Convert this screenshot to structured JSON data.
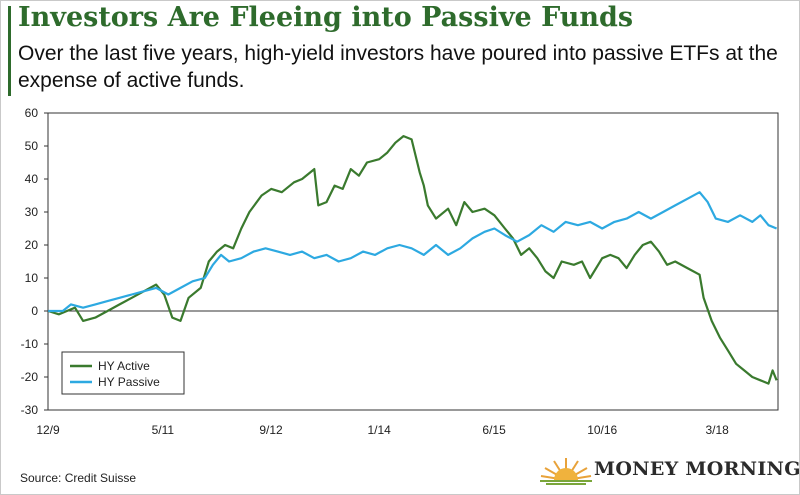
{
  "title": "Investors Are Fleeing into Passive Funds",
  "subtitle": "Over the last five years, high-yield investors have poured into passive ETFs at the expense of active funds.",
  "source": "Source: Credit Suisse",
  "brand": "MONEY MORNING",
  "colors": {
    "active": "#3a7a2e",
    "passive": "#2da9e1",
    "title": "#2e6b2c",
    "axis": "#333333"
  },
  "chart_data": {
    "type": "line",
    "title": "",
    "xlabel": "",
    "ylabel": "",
    "ylim": [
      -30,
      60
    ],
    "yticks": [
      60,
      50,
      40,
      30,
      20,
      10,
      0,
      -10,
      -20,
      -30
    ],
    "xlim": [
      2009.917,
      2018.917
    ],
    "xticks": [
      {
        "label": "12/9",
        "x": 2009.917
      },
      {
        "label": "5/11",
        "x": 2011.333
      },
      {
        "label": "9/12",
        "x": 2012.667
      },
      {
        "label": "1/14",
        "x": 2014.0
      },
      {
        "label": "6/15",
        "x": 2015.417
      },
      {
        "label": "10/16",
        "x": 2016.75
      },
      {
        "label": "3/18",
        "x": 2018.167
      }
    ],
    "grid": false,
    "legend_position": "bottom-left",
    "series": [
      {
        "name": "HY Active",
        "color": "#3a7a2e",
        "points": [
          [
            2009.92,
            0
          ],
          [
            2010.05,
            -1
          ],
          [
            2010.15,
            0
          ],
          [
            2010.25,
            1
          ],
          [
            2010.35,
            -3
          ],
          [
            2010.5,
            -2
          ],
          [
            2010.65,
            0
          ],
          [
            2010.8,
            2
          ],
          [
            2010.95,
            4
          ],
          [
            2011.1,
            6
          ],
          [
            2011.25,
            8
          ],
          [
            2011.35,
            5
          ],
          [
            2011.45,
            -2
          ],
          [
            2011.55,
            -3
          ],
          [
            2011.65,
            4
          ],
          [
            2011.8,
            7
          ],
          [
            2011.9,
            15
          ],
          [
            2012.0,
            18
          ],
          [
            2012.1,
            20
          ],
          [
            2012.2,
            19
          ],
          [
            2012.3,
            25
          ],
          [
            2012.4,
            30
          ],
          [
            2012.55,
            35
          ],
          [
            2012.67,
            37
          ],
          [
            2012.8,
            36
          ],
          [
            2012.95,
            39
          ],
          [
            2013.05,
            40
          ],
          [
            2013.2,
            43
          ],
          [
            2013.25,
            32
          ],
          [
            2013.35,
            33
          ],
          [
            2013.45,
            38
          ],
          [
            2013.55,
            37
          ],
          [
            2013.65,
            43
          ],
          [
            2013.75,
            41
          ],
          [
            2013.85,
            45
          ],
          [
            2014.0,
            46
          ],
          [
            2014.1,
            48
          ],
          [
            2014.2,
            51
          ],
          [
            2014.3,
            53
          ],
          [
            2014.4,
            52
          ],
          [
            2014.5,
            42
          ],
          [
            2014.55,
            38
          ],
          [
            2014.6,
            32
          ],
          [
            2014.7,
            28
          ],
          [
            2014.85,
            31
          ],
          [
            2014.95,
            26
          ],
          [
            2015.05,
            33
          ],
          [
            2015.15,
            30
          ],
          [
            2015.3,
            31
          ],
          [
            2015.42,
            29
          ],
          [
            2015.55,
            25
          ],
          [
            2015.65,
            22
          ],
          [
            2015.75,
            17
          ],
          [
            2015.85,
            19
          ],
          [
            2015.95,
            16
          ],
          [
            2016.05,
            12
          ],
          [
            2016.15,
            10
          ],
          [
            2016.25,
            15
          ],
          [
            2016.4,
            14
          ],
          [
            2016.5,
            15
          ],
          [
            2016.6,
            10
          ],
          [
            2016.75,
            16
          ],
          [
            2016.85,
            17
          ],
          [
            2016.95,
            16
          ],
          [
            2017.05,
            13
          ],
          [
            2017.15,
            17
          ],
          [
            2017.25,
            20
          ],
          [
            2017.35,
            21
          ],
          [
            2017.45,
            18
          ],
          [
            2017.55,
            14
          ],
          [
            2017.65,
            15
          ],
          [
            2017.8,
            13
          ],
          [
            2017.95,
            11
          ],
          [
            2018.0,
            4
          ],
          [
            2018.1,
            -3
          ],
          [
            2018.2,
            -8
          ],
          [
            2018.3,
            -12
          ],
          [
            2018.4,
            -16
          ],
          [
            2018.5,
            -18
          ],
          [
            2018.6,
            -20
          ],
          [
            2018.7,
            -21
          ],
          [
            2018.8,
            -22
          ],
          [
            2018.85,
            -18
          ],
          [
            2018.9,
            -21
          ]
        ]
      },
      {
        "name": "HY Passive",
        "color": "#2da9e1",
        "points": [
          [
            2009.92,
            0
          ],
          [
            2010.1,
            0
          ],
          [
            2010.2,
            2
          ],
          [
            2010.35,
            1
          ],
          [
            2010.5,
            2
          ],
          [
            2010.65,
            3
          ],
          [
            2010.8,
            4
          ],
          [
            2010.95,
            5
          ],
          [
            2011.1,
            6
          ],
          [
            2011.25,
            7
          ],
          [
            2011.4,
            5
          ],
          [
            2011.55,
            7
          ],
          [
            2011.7,
            9
          ],
          [
            2011.85,
            10
          ],
          [
            2011.95,
            14
          ],
          [
            2012.05,
            17
          ],
          [
            2012.15,
            15
          ],
          [
            2012.3,
            16
          ],
          [
            2012.45,
            18
          ],
          [
            2012.6,
            19
          ],
          [
            2012.75,
            18
          ],
          [
            2012.9,
            17
          ],
          [
            2013.05,
            18
          ],
          [
            2013.2,
            16
          ],
          [
            2013.35,
            17
          ],
          [
            2013.5,
            15
          ],
          [
            2013.65,
            16
          ],
          [
            2013.8,
            18
          ],
          [
            2013.95,
            17
          ],
          [
            2014.1,
            19
          ],
          [
            2014.25,
            20
          ],
          [
            2014.4,
            19
          ],
          [
            2014.55,
            17
          ],
          [
            2014.7,
            20
          ],
          [
            2014.85,
            17
          ],
          [
            2015.0,
            19
          ],
          [
            2015.15,
            22
          ],
          [
            2015.3,
            24
          ],
          [
            2015.42,
            25
          ],
          [
            2015.55,
            23
          ],
          [
            2015.7,
            21
          ],
          [
            2015.85,
            23
          ],
          [
            2016.0,
            26
          ],
          [
            2016.15,
            24
          ],
          [
            2016.3,
            27
          ],
          [
            2016.45,
            26
          ],
          [
            2016.6,
            27
          ],
          [
            2016.75,
            25
          ],
          [
            2016.9,
            27
          ],
          [
            2017.05,
            28
          ],
          [
            2017.2,
            30
          ],
          [
            2017.35,
            28
          ],
          [
            2017.5,
            30
          ],
          [
            2017.65,
            32
          ],
          [
            2017.8,
            34
          ],
          [
            2017.95,
            36
          ],
          [
            2018.05,
            33
          ],
          [
            2018.15,
            28
          ],
          [
            2018.3,
            27
          ],
          [
            2018.45,
            29
          ],
          [
            2018.6,
            27
          ],
          [
            2018.7,
            29
          ],
          [
            2018.8,
            26
          ],
          [
            2018.9,
            25
          ]
        ]
      }
    ]
  }
}
